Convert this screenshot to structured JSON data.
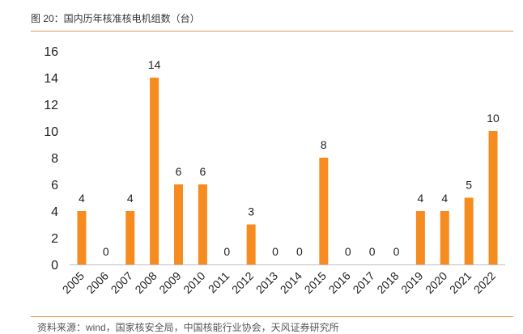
{
  "figure": {
    "title": "图 20：国内历年核准核电机组数（台）",
    "source": "资料来源：wind，国家核安全局，中国核能行业协会，天风证券研究所"
  },
  "chart_data": {
    "type": "bar",
    "title": "",
    "xlabel": "",
    "ylabel": "",
    "categories": [
      "2005",
      "2006",
      "2007",
      "2008",
      "2009",
      "2010",
      "2011",
      "2012",
      "2013",
      "2014",
      "2015",
      "2016",
      "2017",
      "2018",
      "2019",
      "2020",
      "2021",
      "2022"
    ],
    "values": [
      4,
      0,
      4,
      14,
      6,
      6,
      0,
      3,
      0,
      0,
      8,
      0,
      0,
      0,
      4,
      4,
      5,
      10
    ],
    "ylim": [
      0,
      16
    ],
    "yticks": [
      0,
      2,
      4,
      6,
      8,
      10,
      12,
      14,
      16
    ],
    "bar_color": "#f68b1f",
    "axis_color": "#bfbfbf",
    "grid": false,
    "legend": "none",
    "data_labels": true
  }
}
